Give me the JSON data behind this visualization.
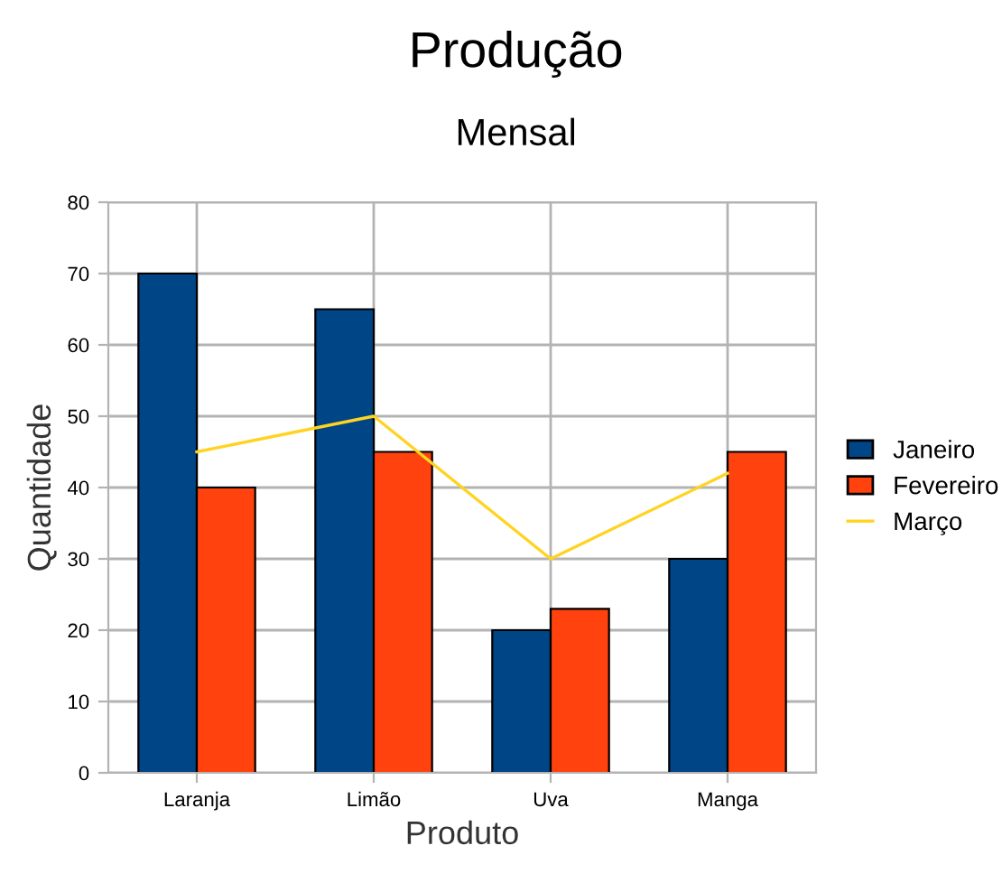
{
  "chart_data": {
    "type": "bar",
    "title": "Produção",
    "subtitle": "Mensal",
    "xlabel": "Produto",
    "ylabel": "Quantidade",
    "categories": [
      "Laranja",
      "Limão",
      "Uva",
      "Manga"
    ],
    "series": [
      {
        "name": "Janeiro",
        "color": "#004586",
        "values": [
          70,
          65,
          20,
          30
        ]
      },
      {
        "name": "Fevereiro",
        "color": "#ff420e",
        "values": [
          40,
          45,
          23,
          45
        ]
      },
      {
        "name": "Março",
        "color": "#ffd320",
        "type": "line",
        "values": [
          45,
          50,
          30,
          42
        ]
      }
    ],
    "ylim": [
      0,
      80
    ],
    "yticks": [
      0,
      10,
      20,
      30,
      40,
      50,
      60,
      70,
      80
    ],
    "grid": true,
    "legend": "right",
    "marker": "none"
  }
}
